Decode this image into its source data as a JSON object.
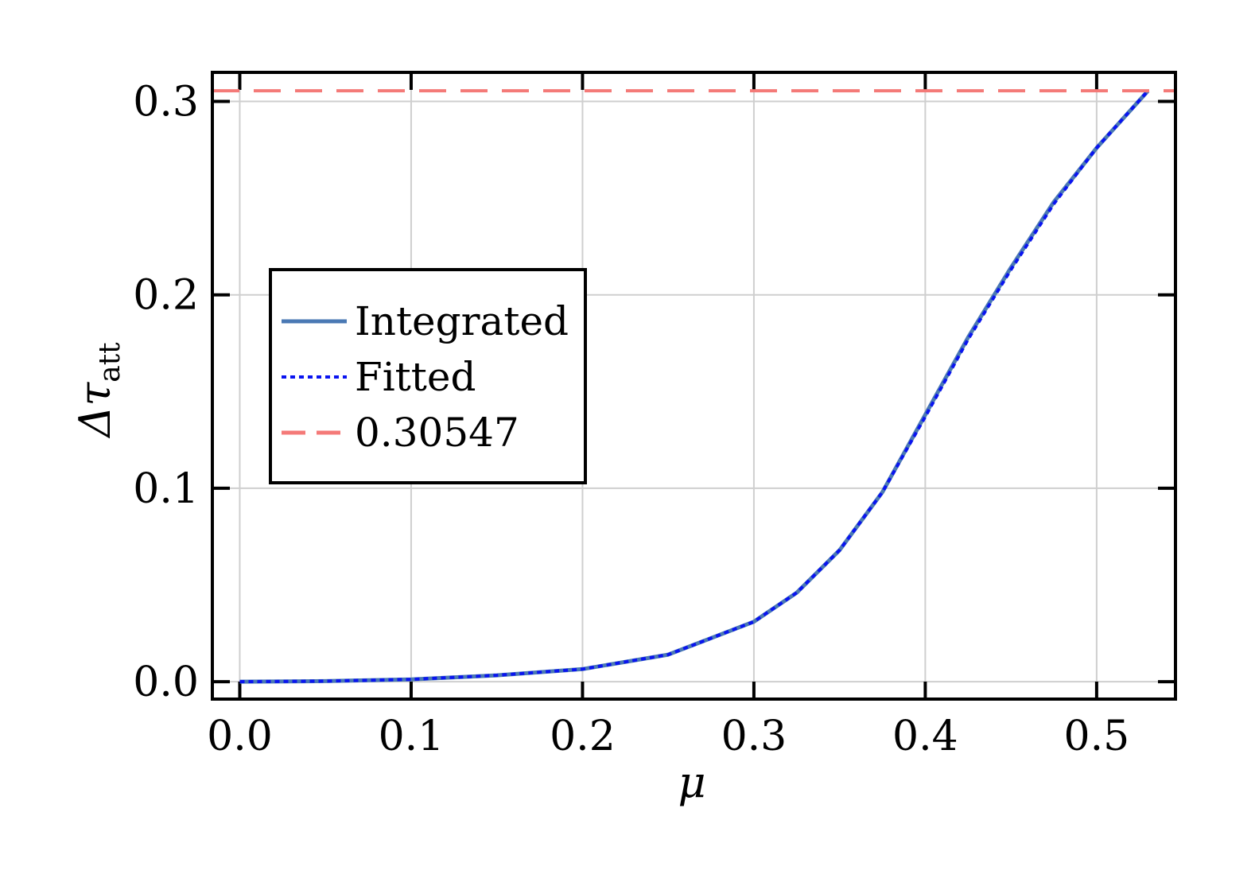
{
  "chart_data": {
    "type": "line",
    "xlabel": "μ",
    "ylabel": {
      "main": "Δτ",
      "subscript": "att"
    },
    "xlim": [
      -0.016,
      0.546
    ],
    "ylim": [
      -0.009,
      0.315
    ],
    "x_ticks": [
      0.0,
      0.1,
      0.2,
      0.3,
      0.4,
      0.5
    ],
    "x_tick_labels": [
      "0.0",
      "0.1",
      "0.2",
      "0.3",
      "0.4",
      "0.5"
    ],
    "y_ticks": [
      0.0,
      0.1,
      0.2,
      0.3
    ],
    "y_tick_labels": [
      "0.0",
      "0.1",
      "0.2",
      "0.3"
    ],
    "grid": true,
    "legend_position": "center-left",
    "series": [
      {
        "name": "Integrated",
        "style": "solid",
        "color": "#4a79b4",
        "x": [
          0.0,
          0.05,
          0.1,
          0.15,
          0.2,
          0.25,
          0.3,
          0.325,
          0.35,
          0.375,
          0.4,
          0.425,
          0.45,
          0.475,
          0.5,
          0.53
        ],
        "y": [
          0.0,
          0.0003,
          0.0012,
          0.0033,
          0.0065,
          0.014,
          0.031,
          0.046,
          0.068,
          0.098,
          0.138,
          0.178,
          0.214,
          0.248,
          0.276,
          0.30547
        ]
      },
      {
        "name": "Fitted",
        "style": "dotted",
        "color": "#0a14f0",
        "x": [
          0.0,
          0.05,
          0.1,
          0.15,
          0.2,
          0.25,
          0.3,
          0.325,
          0.35,
          0.375,
          0.4,
          0.425,
          0.45,
          0.475,
          0.5,
          0.53
        ],
        "y": [
          0.0,
          0.0003,
          0.0012,
          0.0033,
          0.0065,
          0.014,
          0.031,
          0.046,
          0.068,
          0.098,
          0.137,
          0.177,
          0.213,
          0.247,
          0.276,
          0.30547
        ]
      },
      {
        "name": "0.30547",
        "style": "dashed",
        "color": "#f47a78",
        "hline": 0.30547
      }
    ]
  }
}
